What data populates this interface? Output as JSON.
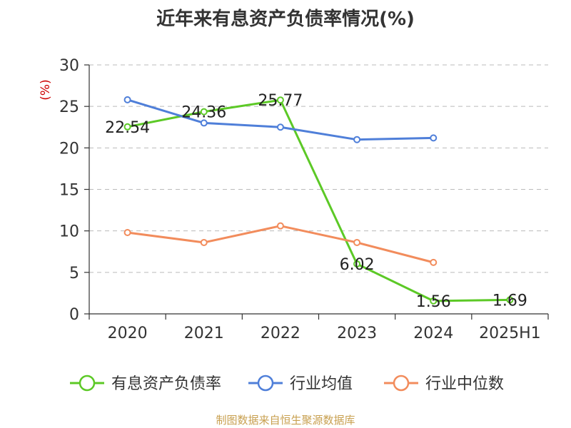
{
  "colors": {
    "debt_ratio": "#5cc926",
    "industry_avg": "#4f7fd9",
    "industry_median": "#f28c5c",
    "axis": "#333333",
    "grid": "#bbbbbb",
    "unit": "#cc0000",
    "source": "#c8a050"
  },
  "chart_data": {
    "type": "line",
    "title": "近年来有息资产负债率情况(%)",
    "ylabel": "(%)",
    "categories": [
      "2020",
      "2021",
      "2022",
      "2023",
      "2024",
      "2025H1"
    ],
    "ylim": [
      0,
      30
    ],
    "yticks": [
      0,
      5,
      10,
      15,
      20,
      25,
      30
    ],
    "grid": true,
    "legend_position": "bottom",
    "series": [
      {
        "name": "有息资产负债率",
        "values": [
          22.54,
          24.36,
          25.77,
          6.02,
          1.56,
          1.69
        ],
        "labels": [
          "22.54",
          "24.36",
          "25.77",
          "6.02",
          "1.56",
          "1.69"
        ]
      },
      {
        "name": "行业均值",
        "values": [
          25.8,
          23.0,
          22.5,
          21.0,
          21.2,
          null
        ]
      },
      {
        "name": "行业中位数",
        "values": [
          9.8,
          8.6,
          10.6,
          8.6,
          6.2,
          null
        ]
      }
    ]
  },
  "source_note": "制图数据来自恒生聚源数据库"
}
